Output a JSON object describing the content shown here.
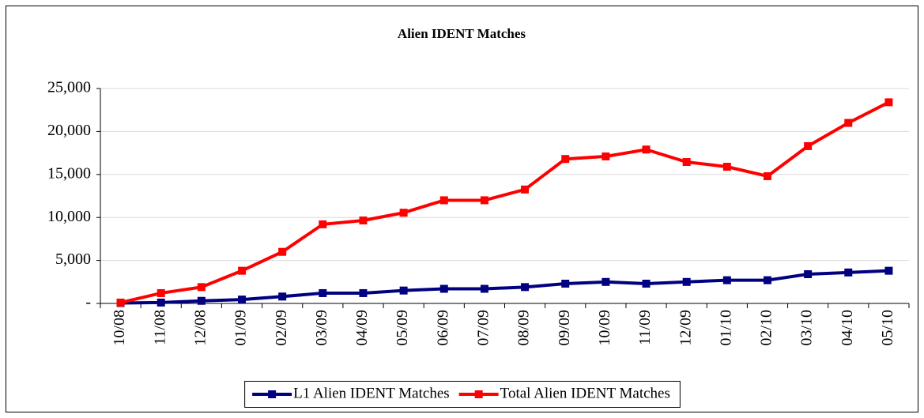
{
  "chart_data": {
    "type": "line",
    "title": "Alien IDENT Matches",
    "categories": [
      "10/08",
      "11/08",
      "12/08",
      "01/09",
      "02/09",
      "03/09",
      "04/09",
      "05/09",
      "06/09",
      "07/09",
      "08/09",
      "09/09",
      "10/09",
      "11/09",
      "12/09",
      "01/10",
      "02/10",
      "03/10",
      "04/10",
      "05/10"
    ],
    "series": [
      {
        "name": "L1 Alien IDENT Matches",
        "color": "#000080",
        "values": [
          50,
          100,
          300,
          450,
          800,
          1200,
          1200,
          1500,
          1700,
          1700,
          1900,
          2300,
          2500,
          2300,
          2500,
          2700,
          2700,
          3400,
          3600,
          3800
        ]
      },
      {
        "name": "Total Alien IDENT Matches",
        "color": "#ff0000",
        "values": [
          100,
          1200,
          1900,
          3800,
          6000,
          9200,
          9650,
          10550,
          12000,
          12000,
          13250,
          16800,
          17100,
          17900,
          16450,
          15900,
          14800,
          18300,
          21000,
          23400
        ]
      }
    ],
    "ylim": [
      0,
      25000
    ],
    "yticks": [
      {
        "value": 0,
        "label": "-"
      },
      {
        "value": 5000,
        "label": "5,000"
      },
      {
        "value": 10000,
        "label": "10,000"
      },
      {
        "value": 15000,
        "label": "15,000"
      },
      {
        "value": 20000,
        "label": "20,000"
      },
      {
        "value": 25000,
        "label": "25,000"
      }
    ],
    "grid": true,
    "legend": "bottom"
  }
}
